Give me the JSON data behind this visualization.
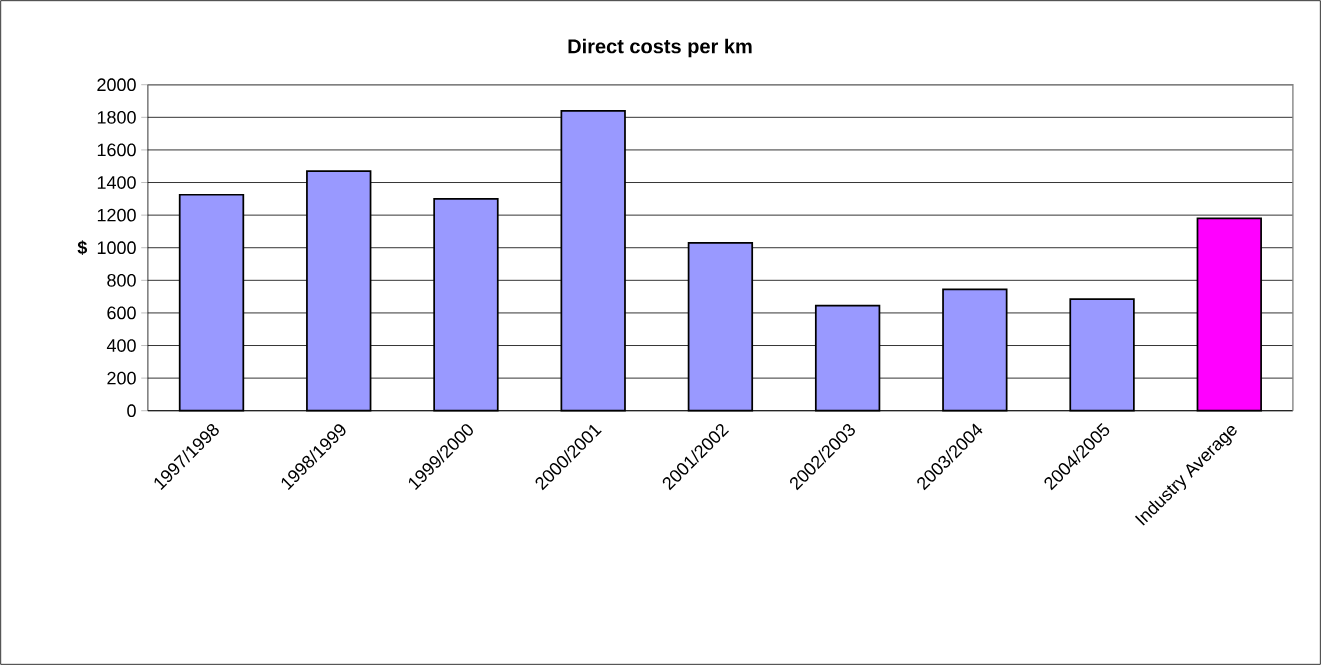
{
  "chart_data": {
    "type": "bar",
    "title": "Direct costs per km",
    "ylabel": "$",
    "categories": [
      "1997/1998",
      "1998/1999",
      "1999/2000",
      "2000/2001",
      "2001/2002",
      "2002/2003",
      "2003/2004",
      "2004/2005",
      "Industry Average"
    ],
    "values": [
      1325,
      1470,
      1300,
      1840,
      1030,
      645,
      745,
      685,
      1180
    ],
    "colors": [
      "#9999ff",
      "#9999ff",
      "#9999ff",
      "#9999ff",
      "#9999ff",
      "#9999ff",
      "#9999ff",
      "#9999ff",
      "#ff00ff"
    ],
    "ylim": [
      0,
      2000
    ],
    "yticks": [
      0,
      200,
      400,
      600,
      800,
      1000,
      1200,
      1400,
      1600,
      1800,
      2000
    ],
    "grid": "y"
  }
}
